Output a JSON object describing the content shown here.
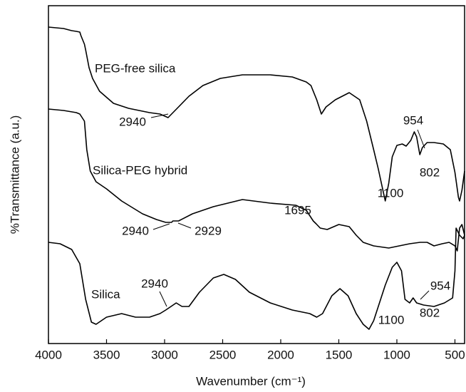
{
  "chart_data": {
    "type": "line",
    "xlabel": "Wavenumber (cm⁻¹)",
    "ylabel": "%Transmittance (a.u.)",
    "xlim": [
      4000,
      417
    ],
    "xticks": [
      4000,
      3500,
      3000,
      2500,
      2000,
      1500,
      1000,
      500
    ],
    "ylim": [
      0,
      474
    ],
    "series": [
      {
        "name": "PEG-free silica",
        "color": "#000000",
        "x": [
          4000,
          3870,
          3800,
          3760,
          3730,
          3720,
          3690,
          3680,
          3650,
          3620,
          3560,
          3440,
          3310,
          3130,
          3040,
          2970,
          2940,
          2880,
          2790,
          2670,
          2520,
          2330,
          2090,
          1900,
          1780,
          1740,
          1690,
          1650,
          1610,
          1530,
          1410,
          1320,
          1260,
          1200,
          1160,
          1120,
          1100,
          1070,
          1040,
          1000,
          954,
          920,
          880,
          850,
          830,
          802,
          780,
          740,
          680,
          600,
          540,
          500,
          470,
          460,
          440,
          417
        ],
        "values": [
          444,
          442,
          439,
          438,
          437,
          432,
          420,
          412,
          387,
          372,
          354,
          337,
          330,
          324,
          322,
          317,
          322,
          332,
          347,
          362,
          372,
          377,
          377,
          374,
          367,
          362,
          342,
          322,
          332,
          342,
          352,
          342,
          312,
          272,
          245,
          215,
          200,
          225,
          262,
          278,
          280,
          277,
          285,
          297,
          290,
          265,
          275,
          282,
          282,
          280,
          272,
          240,
          205,
          200,
          215,
          242
        ]
      },
      {
        "name": "Silica-PEG hybrid",
        "color": "#000000",
        "x": [
          4000,
          3870,
          3760,
          3730,
          3690,
          3670,
          3640,
          3590,
          3500,
          3370,
          3190,
          3070,
          2990,
          2940,
          2929,
          2880,
          2760,
          2580,
          2330,
          2090,
          1870,
          1780,
          1720,
          1695,
          1660,
          1600,
          1500,
          1410,
          1350,
          1290,
          1200,
          1070,
          980,
          890,
          800,
          740,
          680,
          610,
          550,
          500,
          480,
          460,
          440,
          417
        ],
        "values": [
          329,
          327,
          324,
          322,
          312,
          272,
          242,
          227,
          217,
          200,
          182,
          174,
          170,
          170,
          172,
          172,
          182,
          192,
          202,
          197,
          194,
          187,
          172,
          168,
          162,
          160,
          167,
          164,
          152,
          142,
          137,
          134,
          137,
          140,
          142,
          142,
          137,
          140,
          142,
          137,
          130,
          162,
          167,
          152
        ]
      },
      {
        "name": "Silica",
        "color": "#000000",
        "x": [
          4000,
          3900,
          3800,
          3730,
          3680,
          3630,
          3590,
          3500,
          3370,
          3250,
          3130,
          3040,
          2990,
          2945,
          2900,
          2850,
          2790,
          2700,
          2580,
          2490,
          2390,
          2270,
          2090,
          1900,
          1750,
          1690,
          1640,
          1560,
          1490,
          1420,
          1350,
          1290,
          1240,
          1200,
          1100,
          1040,
          1000,
          960,
          930,
          890,
          860,
          830,
          770,
          680,
          590,
          520,
          500,
          490,
          460,
          430,
          417
        ],
        "values": [
          142,
          140,
          132,
          112,
          62,
          30,
          27,
          37,
          42,
          37,
          37,
          42,
          47,
          52,
          57,
          52,
          52,
          72,
          92,
          97,
          90,
          72,
          57,
          47,
          42,
          37,
          42,
          67,
          77,
          67,
          42,
          27,
          20,
          32,
          82,
          107,
          114,
          102,
          62,
          57,
          64,
          57,
          54,
          52,
          57,
          64,
          102,
          162,
          152,
          147,
          152
        ]
      }
    ],
    "annotations": [
      "2940",
      "954",
      "802",
      "1100",
      "2940",
      "2929",
      "1695",
      "2940",
      "954",
      "1100",
      "802"
    ]
  }
}
